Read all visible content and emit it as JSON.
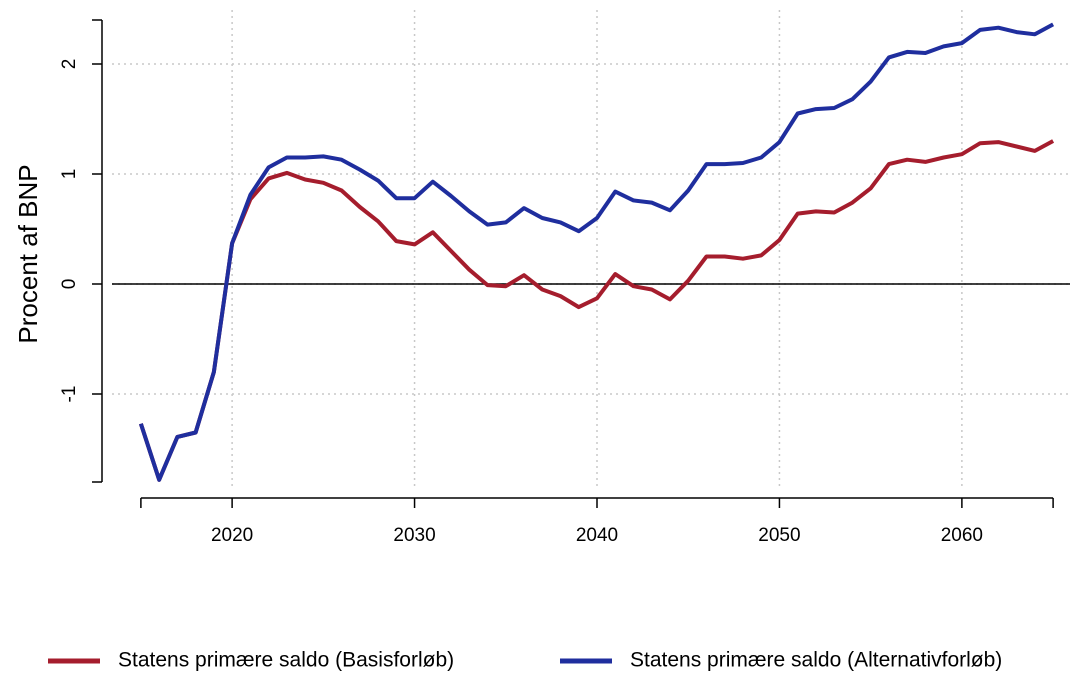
{
  "chart_data": {
    "type": "line",
    "ylabel": "Procent af BNP",
    "x": [
      2015,
      2016,
      2017,
      2018,
      2019,
      2020,
      2021,
      2022,
      2023,
      2024,
      2025,
      2026,
      2027,
      2028,
      2029,
      2030,
      2031,
      2032,
      2033,
      2034,
      2035,
      2036,
      2037,
      2038,
      2039,
      2040,
      2041,
      2042,
      2043,
      2044,
      2045,
      2046,
      2047,
      2048,
      2049,
      2050,
      2051,
      2052,
      2053,
      2054,
      2055,
      2056,
      2057,
      2058,
      2059,
      2060,
      2061,
      2062,
      2063,
      2064,
      2065
    ],
    "series": [
      {
        "name": "Statens primære saldo (Basisforløb)",
        "color": "#a51d2d",
        "values": [
          -1.27,
          -1.78,
          -1.39,
          -1.35,
          -0.8,
          0.37,
          0.77,
          0.96,
          1.01,
          0.95,
          0.92,
          0.85,
          0.7,
          0.57,
          0.39,
          0.36,
          0.47,
          0.3,
          0.13,
          -0.01,
          -0.02,
          0.08,
          -0.05,
          -0.11,
          -0.21,
          -0.13,
          0.09,
          -0.02,
          -0.05,
          -0.14,
          0.03,
          0.25,
          0.25,
          0.23,
          0.26,
          0.4,
          0.64,
          0.66,
          0.65,
          0.74,
          0.87,
          1.09,
          1.13,
          1.11,
          1.15,
          1.18,
          1.28,
          1.29,
          1.25,
          1.21,
          1.3
        ]
      },
      {
        "name": "Statens primære saldo (Alternativforløb)",
        "color": "#1f2e9e",
        "values": [
          -1.27,
          -1.78,
          -1.39,
          -1.35,
          -0.8,
          0.37,
          0.81,
          1.06,
          1.15,
          1.15,
          1.16,
          1.13,
          1.04,
          0.94,
          0.78,
          0.78,
          0.93,
          0.8,
          0.66,
          0.54,
          0.56,
          0.69,
          0.6,
          0.56,
          0.48,
          0.6,
          0.84,
          0.76,
          0.74,
          0.67,
          0.85,
          1.09,
          1.09,
          1.1,
          1.15,
          1.29,
          1.55,
          1.59,
          1.6,
          1.68,
          1.84,
          2.06,
          2.11,
          2.1,
          2.16,
          2.19,
          2.31,
          2.33,
          2.29,
          2.27,
          2.36
        ]
      }
    ],
    "xlim": [
      2013.8,
      2066.2
    ],
    "xticks": [
      2020,
      2030,
      2040,
      2050,
      2060
    ],
    "ylim": [
      -1.8,
      2.4
    ],
    "yticks": [
      -1,
      0,
      1,
      2
    ],
    "grid": true,
    "zero_line": true,
    "legend": "bottom"
  }
}
